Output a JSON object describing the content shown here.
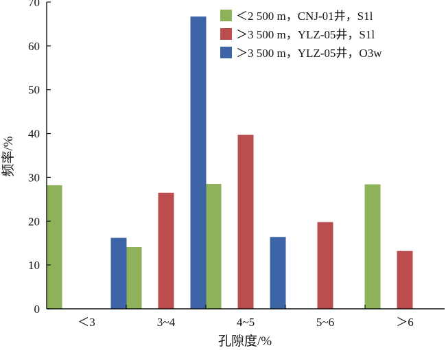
{
  "chart_data": {
    "type": "bar",
    "categories": [
      "＜3",
      "3~4",
      "4~5",
      "5~6",
      "＞6"
    ],
    "series": [
      {
        "name": "＜2 500 m，CNJ-01井，S1l",
        "color": "#8db25a",
        "values": [
          28.2,
          14.1,
          28.5,
          null,
          28.4
        ]
      },
      {
        "name": "＞3 500 m，YLZ-05井，S1l",
        "color": "#bc4d4f",
        "values": [
          null,
          26.5,
          39.7,
          19.8,
          13.2
        ]
      },
      {
        "name": "＞3 500 m，YLZ-05井，O3w",
        "color": "#3c64a6",
        "values": [
          16.2,
          66.7,
          16.4,
          null,
          null
        ]
      }
    ],
    "xlabel": "孔隙度/%",
    "ylabel": "频率/%",
    "ylim": [
      0,
      70
    ],
    "yticks": [
      0,
      10,
      20,
      30,
      40,
      50,
      60,
      70
    ],
    "grid": false,
    "legend_position": "top-right"
  }
}
